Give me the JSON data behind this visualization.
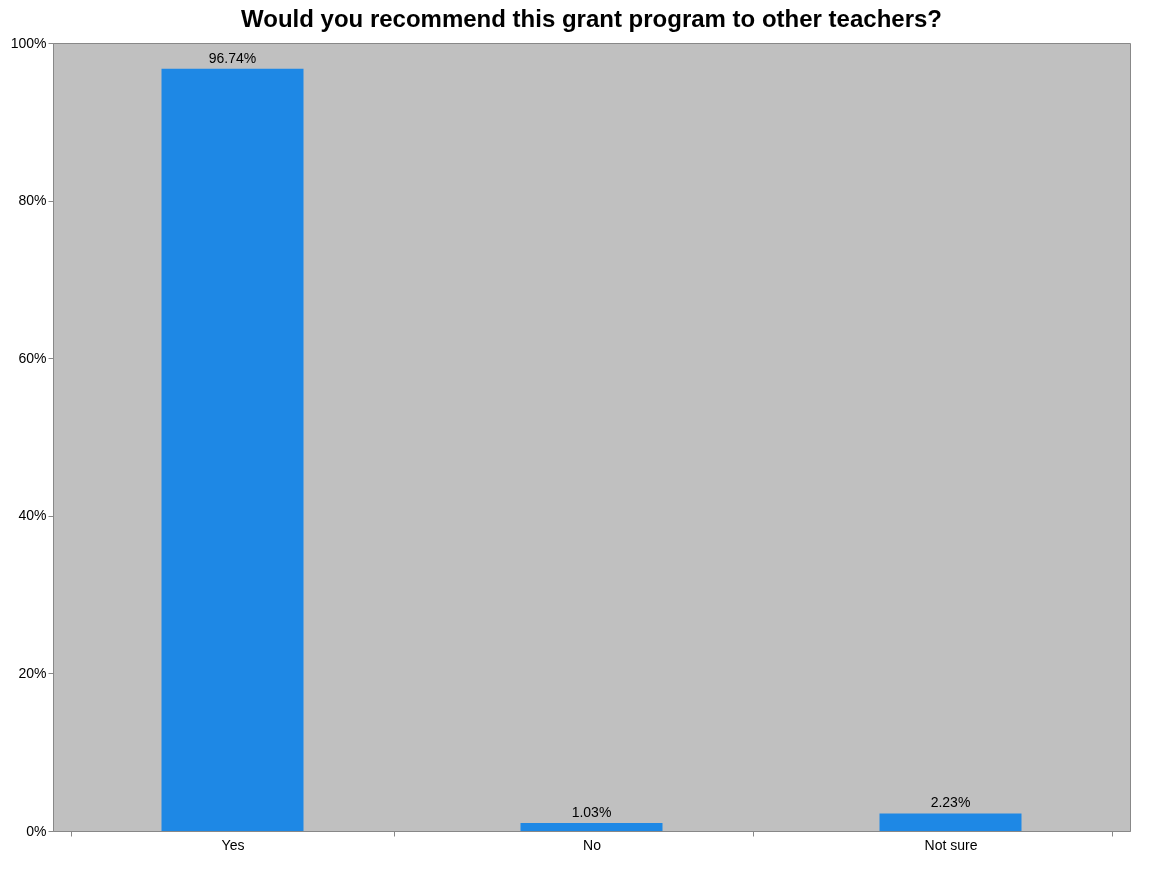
{
  "chart_data": {
    "type": "bar",
    "title": "Would you recommend this grant program to other teachers?",
    "categories": [
      "Yes",
      "No",
      "Not sure"
    ],
    "values": [
      96.74,
      1.03,
      2.23
    ],
    "value_labels": [
      "96.74%",
      "1.03%",
      "2.23%"
    ],
    "color": "#1e88e5",
    "ylim": [
      0,
      100
    ],
    "yticks": [
      {
        "value": 0,
        "label": "0%"
      },
      {
        "value": 20,
        "label": "20%"
      },
      {
        "value": 40,
        "label": "40%"
      },
      {
        "value": 60,
        "label": "60%"
      },
      {
        "value": 80,
        "label": "80%"
      },
      {
        "value": 100,
        "label": "100%"
      }
    ],
    "grid": false
  }
}
